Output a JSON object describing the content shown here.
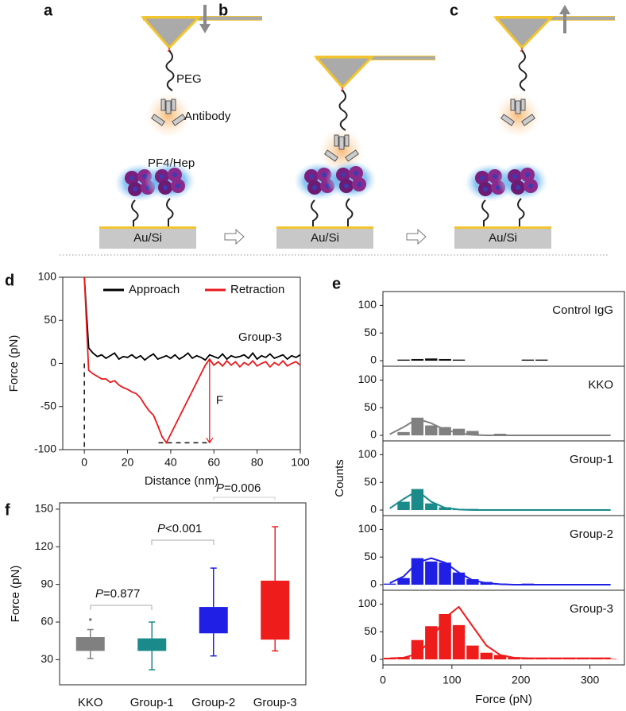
{
  "diagram": {
    "panels": [
      "a",
      "b",
      "c"
    ],
    "peg": "PEG",
    "antibody": "Antibody",
    "pf4": "PF4/Hep",
    "substrate": [
      "Au/Si",
      "Au/Si",
      "Au/Si"
    ]
  },
  "chart_data": [
    {
      "type": "line",
      "panel_label": "d",
      "annotation": "Group-3",
      "force_label": "F",
      "x_label": "Distance (nm)",
      "y_label": "Force (pN)",
      "x": [
        0,
        2,
        4,
        6,
        8,
        10,
        12,
        14,
        16,
        18,
        20,
        22,
        24,
        26,
        28,
        30,
        32,
        34,
        36,
        38,
        40,
        42,
        44,
        46,
        48,
        50,
        52,
        54,
        56,
        58,
        60,
        62,
        64,
        66,
        68,
        70,
        72,
        74,
        76,
        78,
        80,
        82,
        84,
        86,
        88,
        90,
        92,
        94,
        96,
        98,
        100
      ],
      "series": [
        {
          "name": "Approach",
          "color": "#000000",
          "values": [
            100,
            18,
            12,
            8,
            10,
            6,
            9,
            12,
            5,
            8,
            7,
            10,
            6,
            9,
            4,
            8,
            11,
            5,
            7,
            9,
            6,
            10,
            5,
            8,
            12,
            6,
            9,
            7,
            4,
            10,
            8,
            6,
            11,
            5,
            9,
            7,
            8,
            10,
            6,
            12,
            5,
            9,
            7,
            11,
            6,
            8,
            10,
            5,
            9,
            7,
            10
          ]
        },
        {
          "name": "Retraction",
          "color": "#e8191c",
          "values": [
            100,
            -8,
            -12,
            -15,
            -18,
            -18,
            -22,
            -20,
            -25,
            -28,
            -30,
            -33,
            -35,
            -40,
            -48,
            -55,
            -60,
            -72,
            -85,
            -92,
            -82,
            -72,
            -62,
            -52,
            -42,
            -32,
            -22,
            -12,
            -2,
            5,
            -2,
            2,
            -3,
            3,
            -2,
            2,
            -4,
            1,
            -2,
            3,
            -3,
            0,
            2,
            -4,
            1,
            -2,
            3,
            -3,
            0,
            2,
            -2
          ]
        }
      ],
      "xlim": [
        -10,
        100
      ],
      "xticks": [
        0,
        20,
        40,
        60,
        80,
        100
      ],
      "ylim": [
        -100,
        100
      ],
      "yticks": [
        -100,
        -50,
        0,
        50,
        100
      ]
    },
    {
      "type": "histogram",
      "panel_label": "e",
      "x_label": "Force (pN)",
      "y_label": "Counts",
      "bins": [
        0,
        20,
        40,
        60,
        80,
        100,
        120,
        140,
        160,
        180,
        200,
        220,
        240,
        260,
        280,
        300,
        320,
        340
      ],
      "xlim": [
        0,
        350
      ],
      "xticks": [
        0,
        100,
        200,
        300
      ],
      "ylim": [
        -10,
        125
      ],
      "yticks": [
        0,
        50,
        100
      ],
      "series": [
        {
          "name": "Control IgG",
          "color": "#111111",
          "values": [
            0,
            2,
            3,
            4,
            3,
            2,
            0,
            0,
            0,
            0,
            2,
            2,
            0,
            0,
            0,
            0,
            0
          ]
        },
        {
          "name": "KKO",
          "color": "#808080",
          "values": [
            0,
            6,
            32,
            18,
            15,
            12,
            8,
            0,
            3,
            0,
            0,
            0,
            0,
            0,
            0,
            0,
            0
          ],
          "fit": [
            2,
            15,
            30,
            22,
            10,
            4,
            1,
            0,
            0,
            0,
            0,
            0,
            0,
            0,
            0,
            0,
            0
          ]
        },
        {
          "name": "Group-1",
          "color": "#1a8a8a",
          "values": [
            0,
            15,
            38,
            12,
            5,
            2,
            2,
            1,
            1,
            1,
            1,
            1,
            1,
            1,
            0,
            0,
            0
          ],
          "fit": [
            3,
            20,
            35,
            15,
            4,
            1,
            0,
            0,
            0,
            0,
            0,
            0,
            0,
            0,
            0,
            0,
            0
          ]
        },
        {
          "name": "Group-2",
          "color": "#1f1fe6",
          "values": [
            2,
            12,
            48,
            42,
            40,
            22,
            10,
            5,
            2,
            1,
            2,
            1,
            0,
            0,
            0,
            0,
            0
          ],
          "fit": [
            3,
            15,
            40,
            48,
            40,
            22,
            8,
            3,
            1,
            0,
            0,
            0,
            0,
            0,
            0,
            0,
            0
          ]
        },
        {
          "name": "Group-3",
          "color": "#ef1c1c",
          "values": [
            3,
            4,
            35,
            60,
            82,
            62,
            25,
            12,
            8,
            4,
            3,
            2,
            2,
            2,
            1,
            1,
            1
          ],
          "fit": [
            2,
            3,
            10,
            35,
            75,
            95,
            60,
            25,
            8,
            3,
            2,
            2,
            2,
            2,
            2,
            2,
            2
          ]
        }
      ]
    },
    {
      "type": "box",
      "panel_label": "f",
      "y_label": "Force (pN)",
      "categories": [
        "KKO",
        "Group-1",
        "Group-2",
        "Group-3"
      ],
      "colors": [
        "#808080",
        "#1a8a8a",
        "#1f1fe6",
        "#ef1c1c"
      ],
      "q1": [
        37,
        37,
        51,
        46
      ],
      "q3": [
        48,
        47,
        72,
        93
      ],
      "whisker_low": [
        31,
        22,
        33,
        37
      ],
      "whisker_high": [
        54,
        60,
        103,
        136
      ],
      "outliers": [
        [
          62
        ],
        [],
        [],
        []
      ],
      "ylim": [
        10,
        155
      ],
      "yticks": [
        30,
        60,
        90,
        120,
        150
      ],
      "annotations": [
        {
          "italic": "P",
          "text": "=0.877"
        },
        {
          "italic": "P",
          "text": "<0.001"
        },
        {
          "italic": "P",
          "text": "=0.006"
        }
      ]
    }
  ]
}
